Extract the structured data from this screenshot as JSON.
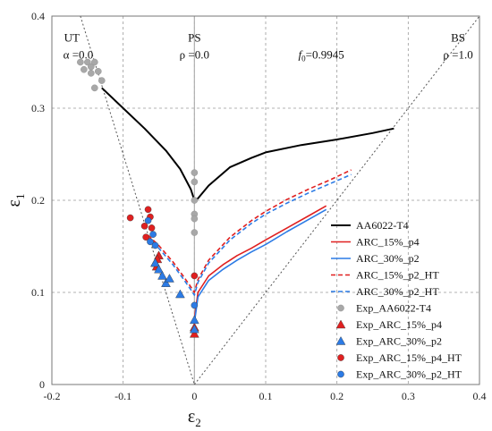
{
  "chart_data": {
    "type": "line",
    "xlabel": "ε2",
    "ylabel": "ε1",
    "xlim": [
      -0.2,
      0.4
    ],
    "ylim": [
      0,
      0.4
    ],
    "xticks": [
      "-0.2",
      "-0.1",
      "0",
      "0.1",
      "0.2",
      "0.3",
      "0.4"
    ],
    "yticks": [
      "0",
      "0.1",
      "0.2",
      "0.3",
      "0.4"
    ],
    "grid": true,
    "legend_position": "bottom-right",
    "annotations": [
      {
        "id": "ut1",
        "text": "UT",
        "x": -0.172,
        "y": 0.376
      },
      {
        "id": "ut2",
        "text": "α =0.0",
        "x": -0.163,
        "y": 0.358
      },
      {
        "id": "ps1",
        "text": "PS",
        "x": 0.0,
        "y": 0.376
      },
      {
        "id": "ps2",
        "text": "ρ =0.0",
        "x": 0.0,
        "y": 0.358
      },
      {
        "id": "f0",
        "text": "f0=0.9945",
        "x": 0.178,
        "y": 0.358
      },
      {
        "id": "bs1",
        "text": "BS",
        "x": 0.37,
        "y": 0.376
      },
      {
        "id": "bs2",
        "text": "ρ =1.0",
        "x": 0.37,
        "y": 0.358
      }
    ],
    "reference_lines": [
      {
        "name": "UT",
        "x": [
          -0.16,
          0.0
        ],
        "y": [
          0.4,
          0.0
        ]
      },
      {
        "name": "BS",
        "x": [
          0.0,
          0.4
        ],
        "y": [
          0.0,
          0.4
        ]
      }
    ],
    "series": [
      {
        "name": "AA6022-T4",
        "color": "#000000",
        "dash": "solid",
        "x": [
          -0.13,
          -0.1,
          -0.07,
          -0.04,
          -0.02,
          -0.005,
          0.0,
          0.005,
          0.02,
          0.05,
          0.08,
          0.1,
          0.15,
          0.2,
          0.25,
          0.28
        ],
        "y": [
          0.322,
          0.3,
          0.278,
          0.254,
          0.234,
          0.212,
          0.2,
          0.202,
          0.216,
          0.236,
          0.246,
          0.252,
          0.26,
          0.266,
          0.273,
          0.278
        ]
      },
      {
        "name": "ARC_15%_p4",
        "color": "#e02020",
        "dash": "solid",
        "x": [
          0.0,
          0.005,
          0.02,
          0.04,
          0.06,
          0.08,
          0.1,
          0.13,
          0.16,
          0.185
        ],
        "y": [
          0.071,
          0.1,
          0.118,
          0.13,
          0.14,
          0.148,
          0.157,
          0.17,
          0.183,
          0.194
        ]
      },
      {
        "name": "ARC_30%_p2",
        "color": "#2c7be5",
        "dash": "solid",
        "x": [
          0.0,
          0.005,
          0.02,
          0.04,
          0.06,
          0.08,
          0.1,
          0.13,
          0.16,
          0.185
        ],
        "y": [
          0.067,
          0.095,
          0.113,
          0.125,
          0.135,
          0.144,
          0.152,
          0.166,
          0.179,
          0.19
        ]
      },
      {
        "name": "ARC_15%_p2_HT",
        "color": "#e02020",
        "dash": "dashed",
        "x": [
          -0.065,
          -0.05,
          -0.03,
          -0.015,
          -0.005,
          0.0,
          0.005,
          0.02,
          0.05,
          0.08,
          0.1,
          0.13,
          0.16,
          0.19,
          0.22
        ],
        "y": [
          0.162,
          0.151,
          0.133,
          0.117,
          0.106,
          0.1,
          0.114,
          0.135,
          0.16,
          0.178,
          0.188,
          0.201,
          0.212,
          0.222,
          0.233
        ]
      },
      {
        "name": "ARC_30%_p2_HT",
        "color": "#2c7be5",
        "dash": "dashed",
        "x": [
          -0.065,
          -0.05,
          -0.03,
          -0.015,
          -0.005,
          0.0,
          0.005,
          0.02,
          0.05,
          0.08,
          0.1,
          0.13,
          0.16,
          0.19,
          0.22
        ],
        "y": [
          0.16,
          0.148,
          0.13,
          0.114,
          0.103,
          0.097,
          0.111,
          0.132,
          0.157,
          0.175,
          0.185,
          0.197,
          0.208,
          0.218,
          0.228
        ]
      }
    ],
    "scatter_series": [
      {
        "name": "Exp_AA6022-T4",
        "marker": "circle",
        "color": "#a8a8a8",
        "x": [
          -0.16,
          -0.15,
          -0.145,
          -0.14,
          -0.155,
          -0.135,
          -0.145,
          -0.13,
          -0.14,
          0.0,
          0.0,
          0.0,
          0.0,
          0.0,
          0.0
        ],
        "y": [
          0.35,
          0.35,
          0.345,
          0.35,
          0.342,
          0.34,
          0.338,
          0.33,
          0.322,
          0.23,
          0.22,
          0.2,
          0.185,
          0.18,
          0.165
        ]
      },
      {
        "name": "Exp_ARC_15%_p4",
        "marker": "triangle",
        "color": "#e02020",
        "x": [
          -0.05,
          -0.052,
          -0.055,
          -0.053,
          0.0,
          0.0
        ],
        "y": [
          0.14,
          0.136,
          0.132,
          0.128,
          0.062,
          0.055
        ]
      },
      {
        "name": "Exp_ARC_30%_p2",
        "marker": "triangle",
        "color": "#2c7be5",
        "x": [
          -0.055,
          -0.05,
          -0.045,
          -0.04,
          -0.035,
          -0.02,
          0.0,
          0.0
        ],
        "y": [
          0.132,
          0.125,
          0.118,
          0.11,
          0.115,
          0.098,
          0.07,
          0.06
        ]
      },
      {
        "name": "Exp_ARC_15%_p4_HT",
        "marker": "circle",
        "color": "#e02020",
        "x": [
          -0.09,
          -0.07,
          -0.065,
          -0.062,
          -0.068,
          -0.06,
          0.0
        ],
        "y": [
          0.181,
          0.172,
          0.19,
          0.182,
          0.16,
          0.17,
          0.118
        ]
      },
      {
        "name": "Exp_ARC_30%_p2_HT",
        "marker": "circle",
        "color": "#2c7be5",
        "x": [
          -0.065,
          -0.058,
          -0.062,
          -0.055,
          0.0
        ],
        "y": [
          0.178,
          0.163,
          0.155,
          0.151,
          0.086
        ]
      }
    ],
    "legend": [
      {
        "label": "AA6022-T4",
        "type": "line",
        "color": "#000000",
        "dash": "solid"
      },
      {
        "label": "ARC_15%_p4",
        "type": "line",
        "color": "#e02020",
        "dash": "solid"
      },
      {
        "label": "ARC_30%_p2",
        "type": "line",
        "color": "#2c7be5",
        "dash": "solid"
      },
      {
        "label": "ARC_15%_p2_HT",
        "type": "line",
        "color": "#e02020",
        "dash": "dashed"
      },
      {
        "label": "ARC_30%_p2_HT",
        "type": "line",
        "color": "#2c7be5",
        "dash": "dashed"
      },
      {
        "label": "Exp_AA6022-T4",
        "type": "circle",
        "color": "#a8a8a8"
      },
      {
        "label": "Exp_ARC_15%_p4",
        "type": "triangle",
        "color": "#e02020"
      },
      {
        "label": "Exp_ARC_30%_p2",
        "type": "triangle",
        "color": "#2c7be5"
      },
      {
        "label": "Exp_ARC_15%_p4_HT",
        "type": "circle",
        "color": "#e02020"
      },
      {
        "label": "Exp_ARC_30%_p2_HT",
        "type": "circle",
        "color": "#2c7be5"
      }
    ]
  }
}
